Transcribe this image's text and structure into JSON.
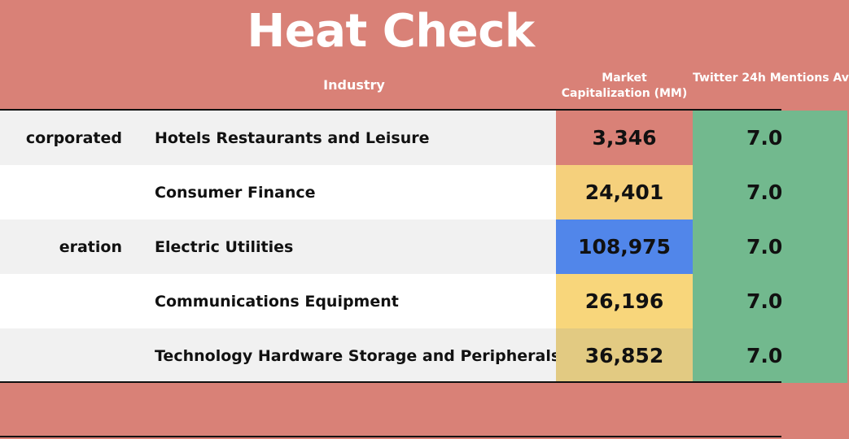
{
  "title": "Heat Check",
  "headers": {
    "industry": "Industry",
    "market_cap": "Market Capitalization (MM)",
    "twitter": "Twitter 24h Mentions Av"
  },
  "rows": [
    {
      "company": "corporated",
      "industry": "Hotels Restaurants and Leisure",
      "market_cap": "3,346",
      "market_cap_color": "#d98177",
      "twitter": "7.0",
      "twitter_color": "#72b98e"
    },
    {
      "company": "",
      "industry": "Consumer Finance",
      "market_cap": "24,401",
      "market_cap_color": "#f5d07c",
      "twitter": "7.0",
      "twitter_color": "#72b98e"
    },
    {
      "company": "eration",
      "industry": "Electric Utilities",
      "market_cap": "108,975",
      "market_cap_color": "#5186ea",
      "twitter": "7.0",
      "twitter_color": "#72b98e"
    },
    {
      "company": "",
      "industry": "Communications Equipment",
      "market_cap": "26,196",
      "market_cap_color": "#f8d67b",
      "twitter": "7.0",
      "twitter_color": "#72b98e"
    },
    {
      "company": "",
      "industry": "Technology Hardware Storage and Peripherals",
      "market_cap": "36,852",
      "market_cap_color": "#e2ca82",
      "twitter": "7.0",
      "twitter_color": "#72b98e"
    }
  ],
  "colors": {
    "background": "#d98177",
    "row_grey": "#f1f1f1",
    "row_white": "#ffffff",
    "header_text": "#ffffff"
  }
}
